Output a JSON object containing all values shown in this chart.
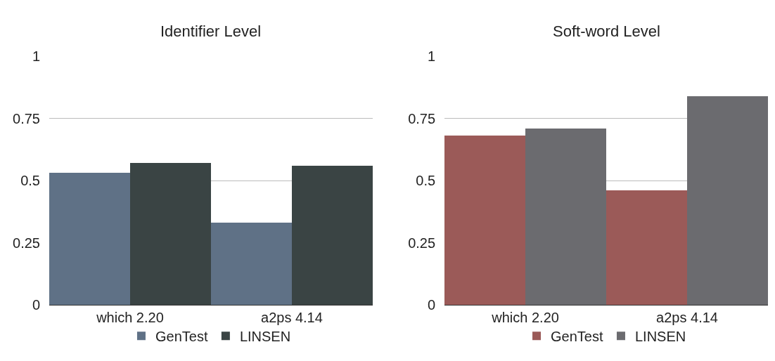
{
  "chart_data": [
    {
      "type": "bar",
      "title": "Identifier Level",
      "categories": [
        "which 2.20",
        "a2ps 4.14"
      ],
      "series": [
        {
          "name": "GenTest",
          "color": "#5f7186",
          "values": [
            0.53,
            0.33
          ]
        },
        {
          "name": "LINSEN",
          "color": "#3a4444",
          "values": [
            0.57,
            0.56
          ]
        }
      ],
      "ylim": [
        0,
        1
      ],
      "yticks": [
        0,
        0.25,
        0.5,
        0.75,
        1
      ],
      "grid": "y",
      "legend": "bottom"
    },
    {
      "type": "bar",
      "title": "Soft-word Level",
      "categories": [
        "which 2.20",
        "a2ps 4.14"
      ],
      "series": [
        {
          "name": "GenTest",
          "color": "#9b5a58",
          "values": [
            0.68,
            0.46
          ]
        },
        {
          "name": "LINSEN",
          "color": "#6b6b6f",
          "values": [
            0.71,
            0.84
          ]
        }
      ],
      "ylim": [
        0,
        1
      ],
      "yticks": [
        0,
        0.25,
        0.5,
        0.75,
        1
      ],
      "grid": "y",
      "legend": "bottom"
    }
  ]
}
